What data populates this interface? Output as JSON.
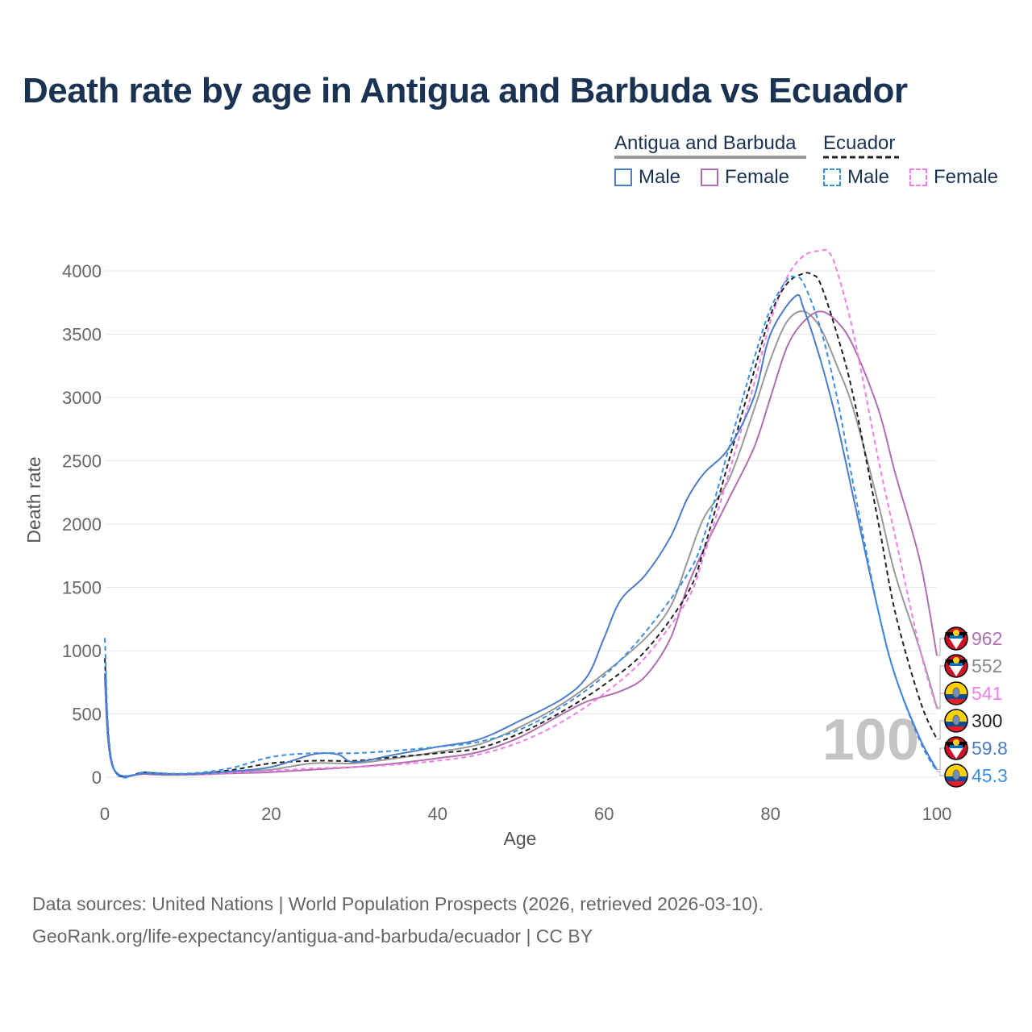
{
  "title": "Death rate by age in Antigua and Barbuda vs Ecuador",
  "legend": {
    "groups": [
      {
        "name": "Antigua and Barbuda",
        "line_color": "#999999",
        "dash": false
      },
      {
        "name": "Ecuador",
        "line_color": "#222222",
        "dash": true
      }
    ],
    "items": [
      {
        "label": "Male",
        "color": "#4a7cc9",
        "dash": false
      },
      {
        "label": "Female",
        "color": "#b06fb0",
        "dash": false
      },
      {
        "label": "Male",
        "color": "#3a8ee6",
        "dash": true
      },
      {
        "label": "Female",
        "color": "#f07ee8",
        "dash": true
      }
    ]
  },
  "watermark": "100",
  "footer": {
    "line1": "Data sources: United Nations | World Population Prospects (2026, retrieved 2026-03-10).",
    "line2": "GeoRank.org/life-expectancy/antigua-and-barbuda/ecuador | CC BY"
  },
  "chart_data": {
    "type": "line",
    "title": "Death rate by age in Antigua and Barbuda vs Ecuador",
    "xlabel": "Age",
    "ylabel": "Death rate",
    "xlim": [
      0,
      100
    ],
    "ylim": [
      0,
      4200
    ],
    "xticks": [
      0,
      20,
      40,
      60,
      80,
      100
    ],
    "yticks": [
      0,
      500,
      1000,
      1500,
      2000,
      2500,
      3000,
      3500,
      4000
    ],
    "series": [
      {
        "name": "Antigua and Barbuda Male",
        "color": "#4a7cc9",
        "dash": false,
        "end_label": "59.8",
        "flag": "antigua",
        "x": [
          0,
          1,
          5,
          10,
          15,
          20,
          25,
          28,
          30,
          35,
          40,
          45,
          50,
          55,
          58,
          60,
          62,
          65,
          68,
          70,
          72,
          75,
          78,
          80,
          83,
          84,
          86,
          88,
          90,
          93,
          95,
          98,
          100
        ],
        "y": [
          820,
          80,
          30,
          25,
          45,
          80,
          180,
          180,
          120,
          180,
          240,
          300,
          450,
          620,
          800,
          1100,
          1400,
          1600,
          1900,
          2200,
          2400,
          2600,
          3000,
          3500,
          3800,
          3700,
          3300,
          2800,
          2200,
          1300,
          800,
          300,
          59.8
        ]
      },
      {
        "name": "Antigua and Barbuda Female",
        "color": "#b06fb0",
        "dash": false,
        "end_label": "962",
        "flag": "antigua",
        "x": [
          0,
          1,
          5,
          10,
          15,
          20,
          25,
          30,
          35,
          40,
          45,
          50,
          55,
          58,
          62,
          65,
          68,
          70,
          72,
          75,
          78,
          80,
          82,
          84,
          86,
          88,
          90,
          93,
          95,
          98,
          100
        ],
        "y": [
          760,
          75,
          25,
          20,
          30,
          40,
          60,
          80,
          110,
          150,
          200,
          320,
          500,
          600,
          680,
          800,
          1100,
          1500,
          1800,
          2200,
          2600,
          3000,
          3400,
          3600,
          3680,
          3600,
          3400,
          2900,
          2400,
          1700,
          962
        ]
      },
      {
        "name": "Ecuador Male",
        "color": "#3a8ee6",
        "dash": true,
        "end_label": "45.3",
        "flag": "ecuador",
        "x": [
          0,
          1,
          5,
          10,
          15,
          20,
          25,
          30,
          35,
          40,
          45,
          50,
          55,
          60,
          65,
          70,
          72,
          75,
          78,
          80,
          82,
          83,
          84,
          86,
          88,
          90,
          93,
          95,
          98,
          100
        ],
        "y": [
          1100,
          85,
          40,
          30,
          70,
          160,
          190,
          190,
          210,
          240,
          280,
          380,
          560,
          800,
          1150,
          1600,
          1900,
          2600,
          3300,
          3700,
          3930,
          3950,
          3900,
          3550,
          3000,
          2300,
          1300,
          800,
          280,
          45.3
        ]
      },
      {
        "name": "Ecuador Female",
        "color": "#f07ee8",
        "dash": true,
        "end_label": "541",
        "flag": "ecuador",
        "x": [
          0,
          1,
          5,
          10,
          15,
          20,
          25,
          30,
          35,
          40,
          45,
          50,
          55,
          60,
          65,
          70,
          72,
          75,
          78,
          80,
          82,
          84,
          86,
          87,
          88,
          90,
          93,
          95,
          98,
          100
        ],
        "y": [
          780,
          70,
          30,
          20,
          35,
          50,
          70,
          80,
          100,
          130,
          180,
          280,
          440,
          660,
          950,
          1400,
          1750,
          2400,
          3100,
          3600,
          3950,
          4120,
          4160,
          4150,
          4000,
          3500,
          2500,
          1900,
          1000,
          541
        ]
      },
      {
        "name": "Antigua and Barbuda (both)",
        "color": "#999999",
        "dash": false,
        "end_label": "552",
        "flag": "antigua",
        "x": [
          0,
          1,
          5,
          10,
          15,
          20,
          25,
          30,
          35,
          40,
          45,
          50,
          55,
          60,
          65,
          68,
          70,
          72,
          75,
          78,
          80,
          82,
          84,
          86,
          88,
          90,
          93,
          95,
          98,
          100
        ],
        "y": [
          790,
          78,
          28,
          22,
          38,
          60,
          110,
          110,
          150,
          200,
          260,
          400,
          580,
          820,
          1100,
          1350,
          1700,
          2050,
          2350,
          2900,
          3300,
          3600,
          3680,
          3550,
          3250,
          2900,
          2150,
          1600,
          1000,
          552
        ]
      },
      {
        "name": "Ecuador (both)",
        "color": "#222222",
        "dash": true,
        "end_label": "300",
        "flag": "ecuador",
        "x": [
          0,
          1,
          5,
          10,
          15,
          20,
          25,
          30,
          35,
          40,
          45,
          50,
          55,
          60,
          65,
          70,
          72,
          75,
          78,
          80,
          82,
          84,
          85,
          86,
          88,
          90,
          93,
          95,
          98,
          100
        ],
        "y": [
          940,
          80,
          38,
          25,
          55,
          110,
          130,
          130,
          160,
          190,
          230,
          350,
          520,
          730,
          1000,
          1450,
          1800,
          2500,
          3200,
          3650,
          3900,
          3980,
          3970,
          3900,
          3500,
          3000,
          2000,
          1300,
          600,
          300
        ]
      }
    ]
  }
}
